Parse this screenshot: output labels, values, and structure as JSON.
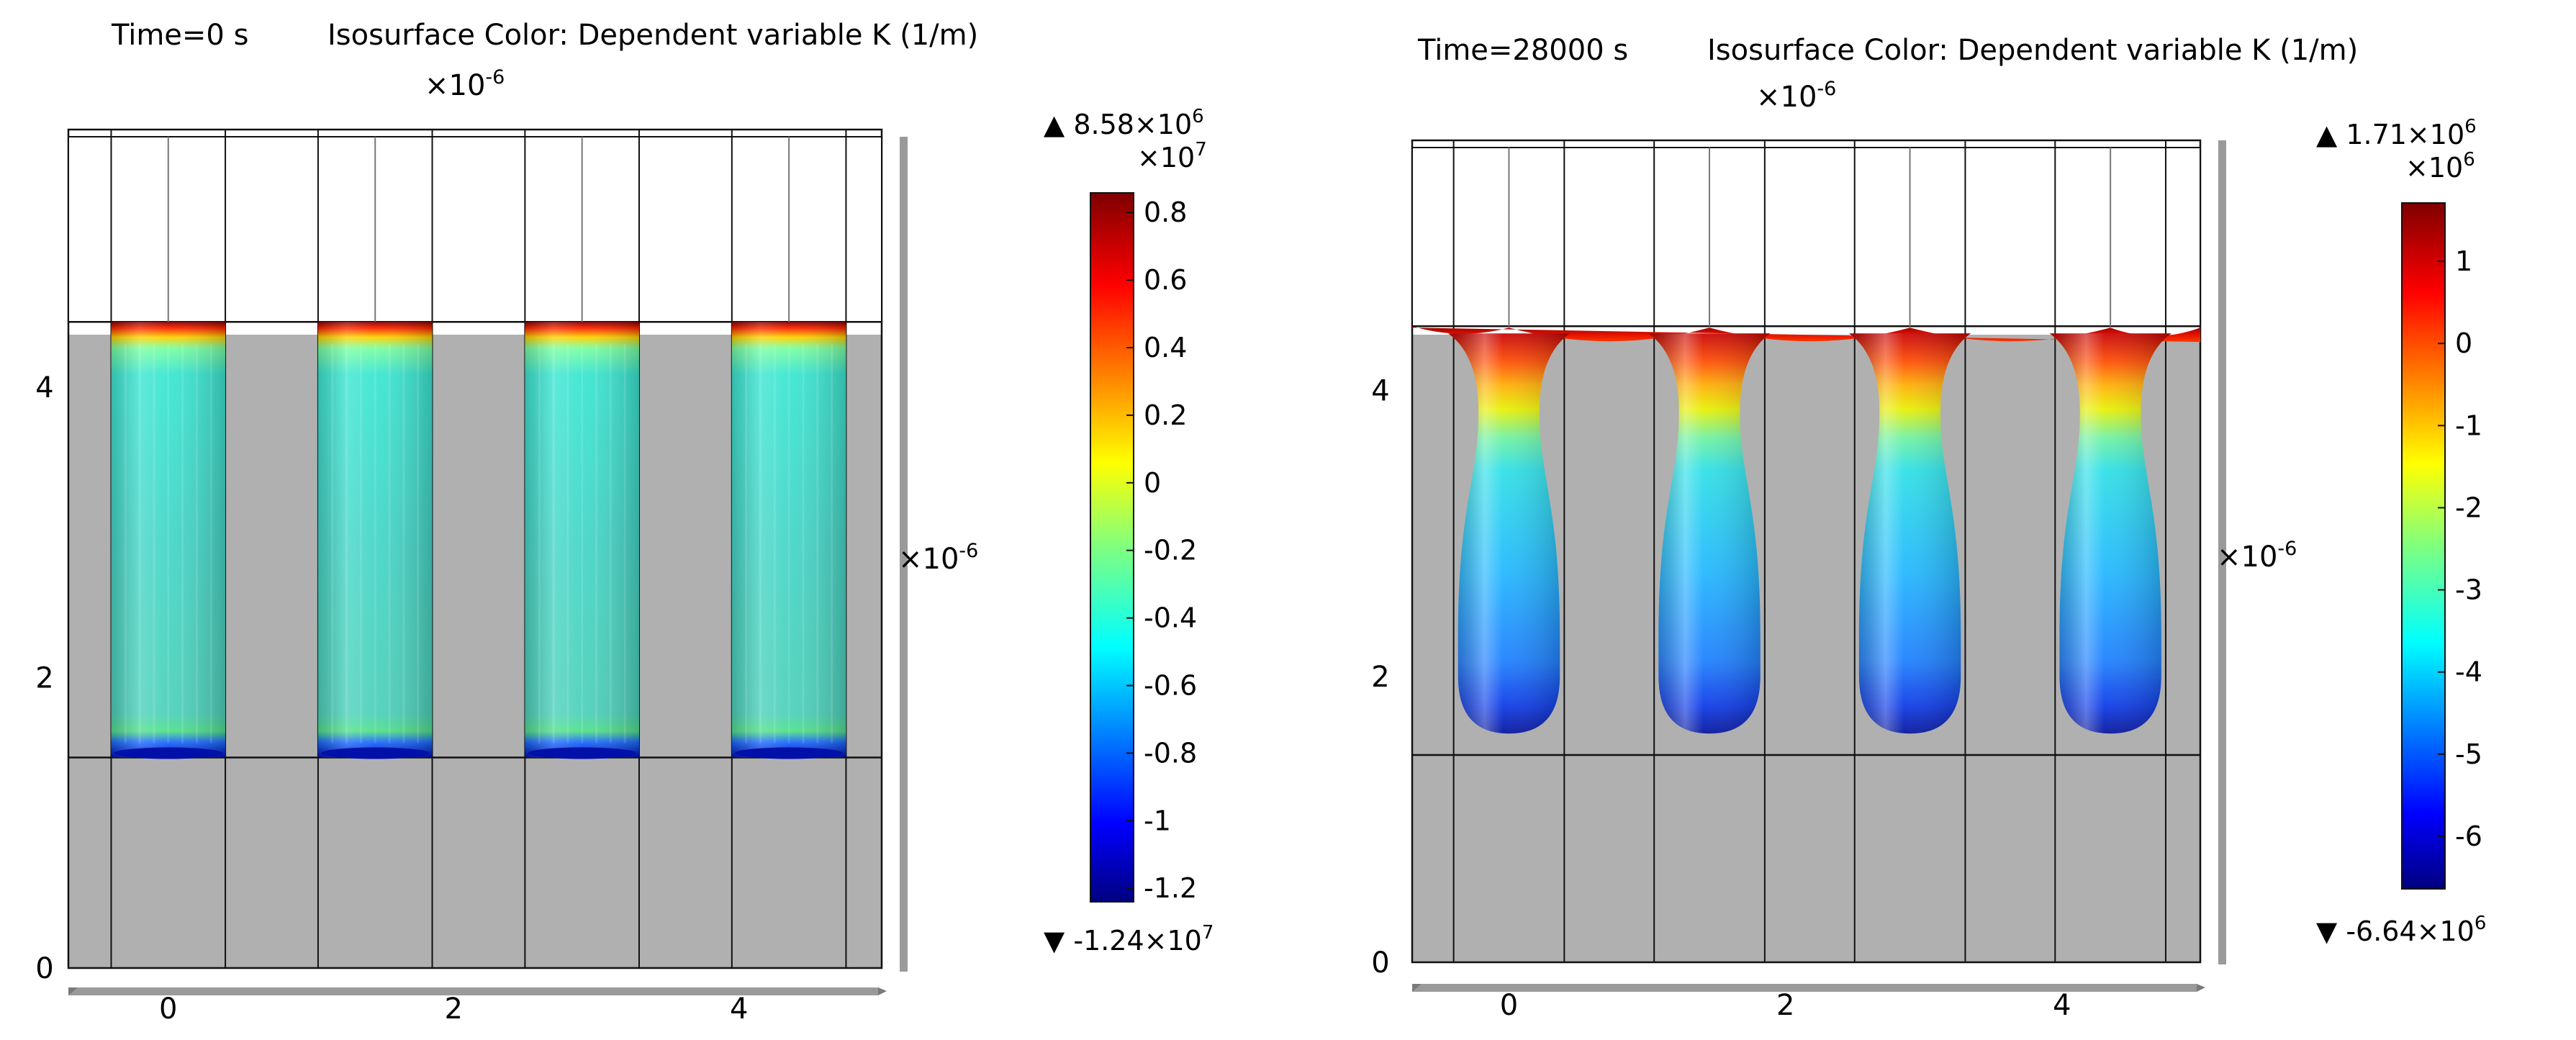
{
  "chart_data": [
    {
      "type": "heatmap",
      "title": "Time=0 s",
      "subtitle": "Isosurface Color: Dependent variable K (1/m)",
      "z_scale_label": "×10",
      "z_scale_exp": "-6",
      "y_scale_label": "×10",
      "y_scale_exp": "-6",
      "x_ticks": [
        "0",
        "2",
        "4"
      ],
      "y_ticks": [
        "0",
        "2",
        "4"
      ],
      "x_range": [
        -0.7,
        5.0
      ],
      "y_range": [
        0.0,
        5.75
      ],
      "fluid_level": 4.45,
      "base_level": 1.45,
      "column_centers": [
        0.0,
        1.45,
        2.9,
        4.35
      ],
      "column_shape": "cylinder",
      "column_half_width": 0.4,
      "column_bottom": 1.45,
      "colorbar": {
        "max_label": "8.58×10",
        "max_exp": "6",
        "min_label": "-1.24×10",
        "min_exp": "7",
        "multiplier_label": "×10",
        "multiplier_exp": "7",
        "range": [
          -1.24,
          0.858
        ],
        "ticks": [
          "0.8",
          "0.6",
          "0.4",
          "0.2",
          "0",
          "-0.2",
          "-0.4",
          "-0.6",
          "-0.8",
          "-1",
          "-1.2"
        ],
        "tick_values": [
          0.8,
          0.6,
          0.4,
          0.2,
          0,
          -0.2,
          -0.4,
          -0.6,
          -0.8,
          -1,
          -1.2
        ]
      }
    },
    {
      "type": "heatmap",
      "title": "Time=28000 s",
      "subtitle": "Isosurface Color: Dependent variable K (1/m)",
      "z_scale_label": "×10",
      "z_scale_exp": "-6",
      "y_scale_label": "×10",
      "y_scale_exp": "-6",
      "x_ticks": [
        "0",
        "2",
        "4"
      ],
      "y_ticks": [
        "0",
        "2",
        "4"
      ],
      "x_range": [
        -0.7,
        5.0
      ],
      "y_range": [
        0.0,
        5.75
      ],
      "fluid_level": 4.45,
      "base_level": 1.45,
      "column_centers": [
        0.0,
        1.45,
        2.9,
        4.35
      ],
      "column_shape": "droplet",
      "column_half_width": 0.4,
      "column_bottom": 1.6,
      "colorbar": {
        "max_label": "1.71×10",
        "max_exp": "6",
        "min_label": "-6.64×10",
        "min_exp": "6",
        "multiplier_label": "×10",
        "multiplier_exp": "6",
        "range": [
          -6.64,
          1.71
        ],
        "ticks": [
          "1",
          "0",
          "-1",
          "-2",
          "-3",
          "-4",
          "-5",
          "-6"
        ],
        "tick_values": [
          1,
          0,
          -1,
          -2,
          -3,
          -4,
          -5,
          -6
        ]
      }
    }
  ]
}
